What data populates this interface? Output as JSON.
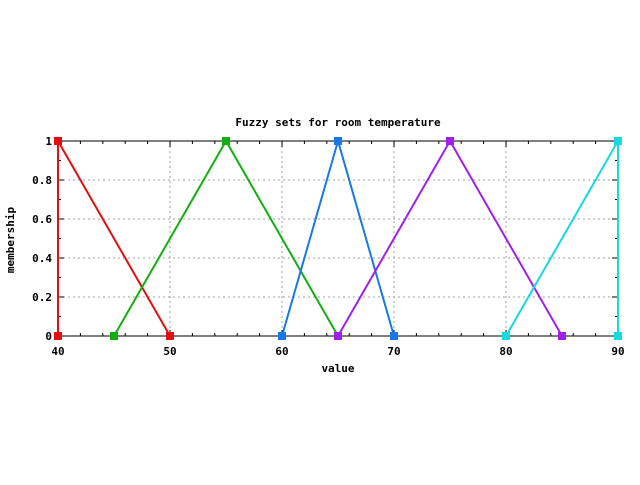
{
  "chart_data": {
    "type": "line",
    "title": "Fuzzy sets for room temperature",
    "xlabel": "value",
    "ylabel": "membership",
    "xlim": [
      40,
      90
    ],
    "ylim": [
      0,
      1
    ],
    "x_ticks": [
      40,
      50,
      60,
      70,
      80,
      90
    ],
    "y_ticks": [
      0,
      0.2,
      0.4,
      0.6,
      0.8,
      1
    ],
    "y_tick_labels": [
      "0",
      "0.2",
      "0.4",
      "0.6",
      "0.8",
      "1"
    ],
    "grid": true,
    "legend": "none",
    "marker": "square",
    "series": [
      {
        "color": "#e01010",
        "x": [
          40,
          40,
          50
        ],
        "y": [
          0,
          1,
          0
        ]
      },
      {
        "color": "#10b010",
        "x": [
          45,
          55,
          65
        ],
        "y": [
          0,
          1,
          0
        ]
      },
      {
        "color": "#1878e8",
        "x": [
          60,
          65,
          70
        ],
        "y": [
          0,
          1,
          0
        ]
      },
      {
        "color": "#a020e8",
        "x": [
          65,
          75,
          85
        ],
        "y": [
          0,
          1,
          0
        ]
      },
      {
        "color": "#18d8e0",
        "x": [
          80,
          90,
          90
        ],
        "y": [
          0,
          1,
          0
        ]
      }
    ]
  }
}
